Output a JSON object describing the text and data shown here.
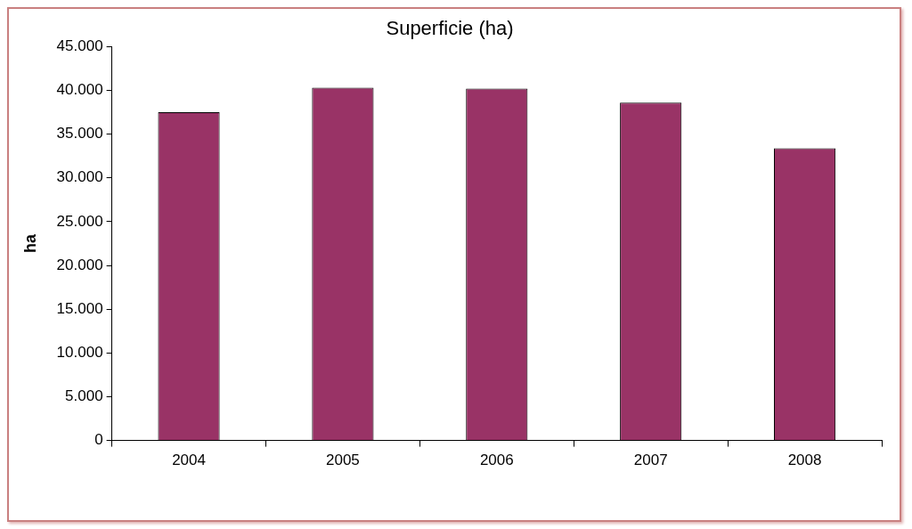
{
  "chart_data": {
    "type": "bar",
    "title": "Superficie (ha)",
    "ylabel": "ha",
    "categories": [
      "2004",
      "2005",
      "2006",
      "2007",
      "2008"
    ],
    "series": [
      {
        "color": "#993366",
        "values": [
          37500,
          40300,
          40200,
          38600,
          33400
        ]
      }
    ],
    "ylim": [
      0,
      45000
    ],
    "yticks": [
      0,
      {
        "value": 5000,
        "label": "5.000"
      },
      {
        "value": 10000,
        "label": "10.000"
      },
      {
        "value": 15000,
        "label": "15.000"
      },
      {
        "value": 20000,
        "label": "20.000"
      },
      {
        "value": 25000,
        "label": "25.000"
      },
      {
        "value": 30000,
        "label": "30.000"
      },
      {
        "value": 35000,
        "label": "35.000"
      },
      {
        "value": 40000,
        "label": "40.000"
      },
      {
        "value": 45000,
        "label": "45.000"
      }
    ],
    "grid": false,
    "legend": false
  }
}
